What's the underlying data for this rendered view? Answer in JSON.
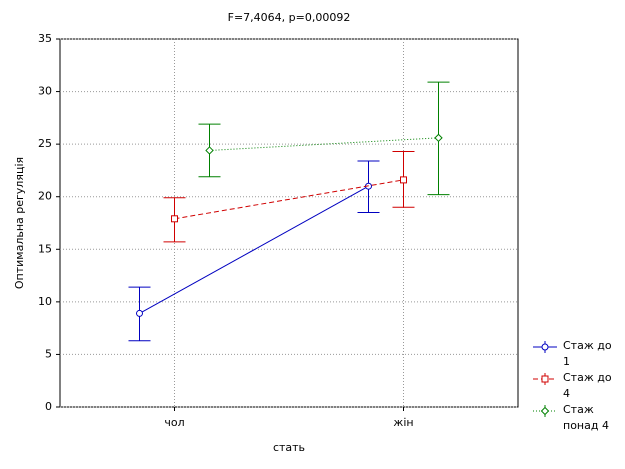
{
  "chart_data": {
    "type": "line",
    "title": "F=7,4064, p=0,00092",
    "xlabel": "стать",
    "ylabel": "Оптимальна регуляція",
    "categories": [
      "чол",
      "жін"
    ],
    "ylim": [
      0,
      35
    ],
    "yticks": [
      0,
      5,
      10,
      15,
      20,
      25,
      30,
      35
    ],
    "grid": true,
    "legend": "bottom-right-outside",
    "series": [
      {
        "name": "Стаж до 1",
        "color": "#0000c0",
        "line": "solid",
        "marker": "circle",
        "values": [
          8.9,
          21.0
        ],
        "lower": [
          6.3,
          18.5
        ],
        "upper": [
          11.4,
          23.4
        ]
      },
      {
        "name": "Стаж до 4",
        "color": "#d00000",
        "line": "dashed",
        "marker": "square",
        "values": [
          17.9,
          21.6
        ],
        "lower": [
          15.7,
          19.0
        ],
        "upper": [
          19.9,
          24.3
        ]
      },
      {
        "name": "Стаж понад 4",
        "color": "#008000",
        "line": "dotted",
        "marker": "diamond",
        "values": [
          24.4,
          25.6
        ],
        "lower": [
          21.9,
          20.2
        ],
        "upper": [
          26.9,
          30.9
        ]
      }
    ]
  }
}
